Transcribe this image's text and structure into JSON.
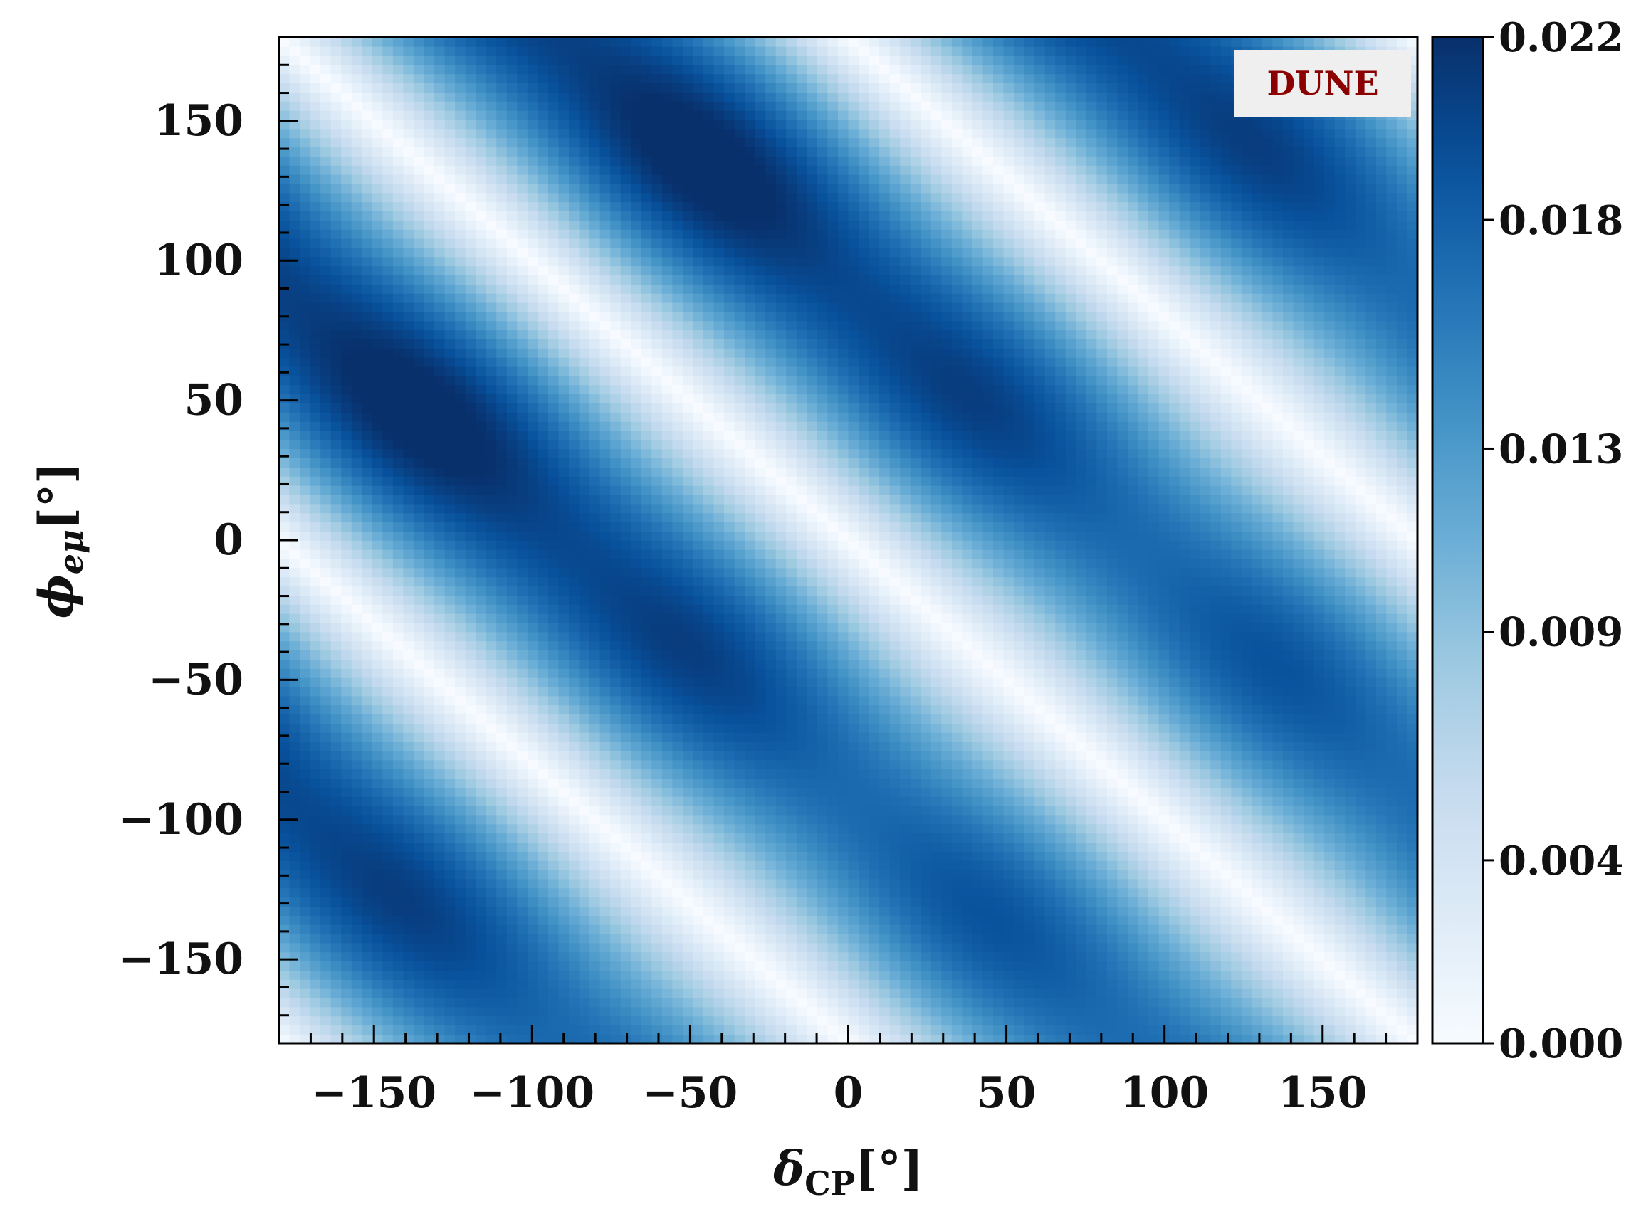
{
  "chart_data": {
    "type": "heatmap",
    "title": "",
    "annotation": "DUNE",
    "colors": {
      "annotation_text": "#8b0000",
      "annotation_box": "#efefef",
      "cmap_low": "#f7fbff",
      "cmap_high": "#08306b",
      "colormap": "Blues"
    },
    "xlabel": {
      "main": "δ",
      "sub": "CP",
      "unit": "[°]"
    },
    "ylabel": {
      "main": "ϕ",
      "sub": "eμ",
      "unit": "[°]"
    },
    "xlim": [
      -180,
      180
    ],
    "ylim": [
      -180,
      180
    ],
    "xticks": [
      -150,
      -100,
      -50,
      0,
      50,
      100,
      150
    ],
    "yticks": [
      -150,
      -100,
      -50,
      0,
      50,
      100,
      150
    ],
    "xticklabels": [
      "−150",
      "−100",
      "−50",
      "0",
      "50",
      "100",
      "150"
    ],
    "yticklabels": [
      "−150",
      "−100",
      "−50",
      "0",
      "50",
      "100",
      "150"
    ],
    "colorbar": {
      "range": [
        0.0,
        0.022
      ],
      "ticks": [
        0.0,
        0.004,
        0.009,
        0.013,
        0.018,
        0.022
      ],
      "ticklabels": [
        "0.000",
        "0.004",
        "0.009",
        "0.013",
        "0.018",
        "0.022"
      ]
    },
    "z_model": {
      "description": "Difference vanishes along lines delta_CP + phi_emu = const (white bands) and peaks between them.",
      "zero_lines_delta_plus_phi": [
        -180,
        0,
        180
      ],
      "peak_lines_delta_plus_phi": [
        -90,
        90
      ],
      "peak_value_upper_left": 0.022,
      "peak_value_lower_right": 0.018,
      "maximum_point": {
        "delta_cp": -90,
        "phi_emu": 40,
        "value": 0.022
      }
    }
  }
}
